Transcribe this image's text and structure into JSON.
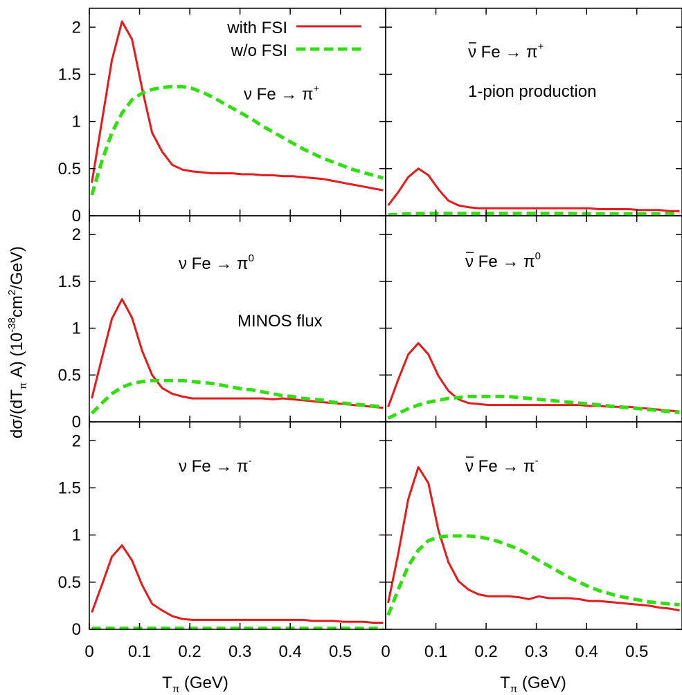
{
  "figure": {
    "ylabel_parts": [
      "dσ/(dT",
      "π",
      " A)  (10",
      "-38",
      "cm",
      "2",
      "/GeV)"
    ],
    "xlabel_parts": [
      "T",
      "π",
      " (GeV)"
    ],
    "legend": [
      {
        "label": "with FSI",
        "color": "#e41a1c",
        "dash": "solid"
      },
      {
        "label": "w/o FSI",
        "color": "#33dd11",
        "dash": "dashed"
      }
    ],
    "annotations": {
      "process_top_right": "1-pion production",
      "flux_middle_left": "MINOS flux"
    }
  },
  "chart_data": [
    {
      "type": "line",
      "panel": "top-left",
      "label_parts": [
        "ν Fe → π",
        "+"
      ],
      "bar": false,
      "xlim": [
        0,
        0.59
      ],
      "ylim": [
        0,
        2.2
      ],
      "yticks": [
        "0",
        "0.5",
        "1",
        "1.5",
        "2"
      ],
      "xticks": [],
      "series": [
        {
          "name": "with FSI",
          "x": [
            0.005,
            0.025,
            0.045,
            0.065,
            0.085,
            0.105,
            0.125,
            0.145,
            0.165,
            0.185,
            0.205,
            0.225,
            0.245,
            0.265,
            0.285,
            0.305,
            0.325,
            0.345,
            0.365,
            0.385,
            0.405,
            0.425,
            0.445,
            0.465,
            0.485,
            0.505,
            0.525,
            0.545,
            0.565,
            0.585
          ],
          "y": [
            0.35,
            1.0,
            1.65,
            2.06,
            1.87,
            1.35,
            0.88,
            0.68,
            0.54,
            0.49,
            0.47,
            0.46,
            0.45,
            0.45,
            0.45,
            0.44,
            0.44,
            0.43,
            0.43,
            0.42,
            0.42,
            0.41,
            0.4,
            0.39,
            0.37,
            0.35,
            0.33,
            0.31,
            0.29,
            0.27
          ]
        },
        {
          "name": "w/o FSI",
          "x": [
            0.005,
            0.025,
            0.045,
            0.065,
            0.085,
            0.105,
            0.125,
            0.145,
            0.165,
            0.185,
            0.205,
            0.225,
            0.245,
            0.265,
            0.285,
            0.305,
            0.325,
            0.345,
            0.365,
            0.385,
            0.405,
            0.425,
            0.445,
            0.465,
            0.485,
            0.505,
            0.525,
            0.545,
            0.565,
            0.585
          ],
          "y": [
            0.22,
            0.58,
            0.88,
            1.09,
            1.23,
            1.3,
            1.34,
            1.36,
            1.37,
            1.37,
            1.35,
            1.31,
            1.26,
            1.2,
            1.14,
            1.08,
            1.02,
            0.95,
            0.89,
            0.83,
            0.77,
            0.71,
            0.66,
            0.61,
            0.57,
            0.53,
            0.49,
            0.46,
            0.43,
            0.4
          ]
        }
      ]
    },
    {
      "type": "line",
      "panel": "top-right",
      "label_parts": [
        "ν Fe → π",
        "+"
      ],
      "bar": true,
      "xlim": [
        0,
        0.59
      ],
      "ylim": [
        0,
        2.2
      ],
      "yticks": [],
      "xticks": [],
      "series": [
        {
          "name": "with FSI",
          "x": [
            0.005,
            0.025,
            0.045,
            0.065,
            0.085,
            0.105,
            0.125,
            0.145,
            0.165,
            0.185,
            0.205,
            0.225,
            0.245,
            0.265,
            0.285,
            0.305,
            0.325,
            0.345,
            0.365,
            0.385,
            0.405,
            0.425,
            0.445,
            0.465,
            0.485,
            0.505,
            0.525,
            0.545,
            0.565,
            0.585
          ],
          "y": [
            0.11,
            0.25,
            0.41,
            0.5,
            0.43,
            0.28,
            0.16,
            0.11,
            0.09,
            0.08,
            0.08,
            0.08,
            0.08,
            0.08,
            0.08,
            0.08,
            0.08,
            0.08,
            0.08,
            0.08,
            0.08,
            0.07,
            0.07,
            0.07,
            0.07,
            0.06,
            0.06,
            0.06,
            0.05,
            0.05
          ]
        },
        {
          "name": "w/o FSI",
          "x": [
            0.005,
            0.025,
            0.045,
            0.065,
            0.085,
            0.105,
            0.125,
            0.145,
            0.165,
            0.185,
            0.205,
            0.225,
            0.245,
            0.265,
            0.285,
            0.305,
            0.325,
            0.345,
            0.365,
            0.385,
            0.405,
            0.425,
            0.445,
            0.465,
            0.485,
            0.505,
            0.525,
            0.545,
            0.565,
            0.585
          ],
          "y": [
            0.01,
            0.015,
            0.02,
            0.025,
            0.025,
            0.025,
            0.025,
            0.025,
            0.025,
            0.025,
            0.025,
            0.025,
            0.025,
            0.025,
            0.025,
            0.025,
            0.025,
            0.025,
            0.025,
            0.02,
            0.02,
            0.02,
            0.02,
            0.02,
            0.02,
            0.02,
            0.02,
            0.02,
            0.02,
            0.02
          ]
        }
      ]
    },
    {
      "type": "line",
      "panel": "middle-left",
      "label_parts": [
        "ν Fe →  π",
        "0"
      ],
      "bar": false,
      "xlim": [
        0,
        0.59
      ],
      "ylim": [
        0,
        2.2
      ],
      "yticks": [
        "0",
        "0.5",
        "1",
        "1.5",
        "2"
      ],
      "xticks": [],
      "series": [
        {
          "name": "with FSI",
          "x": [
            0.005,
            0.025,
            0.045,
            0.065,
            0.085,
            0.105,
            0.125,
            0.145,
            0.165,
            0.185,
            0.205,
            0.225,
            0.245,
            0.265,
            0.285,
            0.305,
            0.325,
            0.345,
            0.365,
            0.385,
            0.405,
            0.425,
            0.445,
            0.465,
            0.485,
            0.505,
            0.525,
            0.545,
            0.565,
            0.585
          ],
          "y": [
            0.25,
            0.68,
            1.1,
            1.31,
            1.11,
            0.76,
            0.5,
            0.36,
            0.3,
            0.27,
            0.25,
            0.25,
            0.25,
            0.25,
            0.25,
            0.25,
            0.25,
            0.25,
            0.24,
            0.25,
            0.24,
            0.23,
            0.22,
            0.21,
            0.2,
            0.19,
            0.18,
            0.17,
            0.16,
            0.15
          ]
        },
        {
          "name": "w/o FSI",
          "x": [
            0.005,
            0.025,
            0.045,
            0.065,
            0.085,
            0.105,
            0.125,
            0.145,
            0.165,
            0.185,
            0.205,
            0.225,
            0.245,
            0.265,
            0.285,
            0.305,
            0.325,
            0.345,
            0.365,
            0.385,
            0.405,
            0.425,
            0.445,
            0.465,
            0.485,
            0.505,
            0.525,
            0.545,
            0.565,
            0.585
          ],
          "y": [
            0.09,
            0.2,
            0.3,
            0.37,
            0.41,
            0.43,
            0.44,
            0.44,
            0.44,
            0.44,
            0.43,
            0.42,
            0.41,
            0.39,
            0.37,
            0.35,
            0.34,
            0.32,
            0.3,
            0.28,
            0.27,
            0.25,
            0.24,
            0.23,
            0.21,
            0.2,
            0.19,
            0.18,
            0.17,
            0.16
          ]
        }
      ]
    },
    {
      "type": "line",
      "panel": "middle-right",
      "label_parts": [
        "ν Fe → π",
        "0"
      ],
      "bar": true,
      "xlim": [
        0,
        0.59
      ],
      "ylim": [
        0,
        2.2
      ],
      "yticks": [],
      "xticks": [],
      "series": [
        {
          "name": "with FSI",
          "x": [
            0.005,
            0.025,
            0.045,
            0.065,
            0.085,
            0.105,
            0.125,
            0.145,
            0.165,
            0.185,
            0.205,
            0.225,
            0.245,
            0.265,
            0.285,
            0.305,
            0.325,
            0.345,
            0.365,
            0.385,
            0.405,
            0.425,
            0.445,
            0.465,
            0.485,
            0.505,
            0.525,
            0.545,
            0.565,
            0.585
          ],
          "y": [
            0.16,
            0.45,
            0.72,
            0.84,
            0.72,
            0.49,
            0.33,
            0.24,
            0.2,
            0.19,
            0.18,
            0.18,
            0.18,
            0.18,
            0.18,
            0.18,
            0.18,
            0.18,
            0.18,
            0.18,
            0.17,
            0.17,
            0.16,
            0.16,
            0.16,
            0.15,
            0.14,
            0.13,
            0.12,
            0.11
          ]
        },
        {
          "name": "w/o FSI",
          "x": [
            0.005,
            0.025,
            0.045,
            0.065,
            0.085,
            0.105,
            0.125,
            0.145,
            0.165,
            0.185,
            0.205,
            0.225,
            0.245,
            0.265,
            0.285,
            0.305,
            0.325,
            0.345,
            0.365,
            0.385,
            0.405,
            0.425,
            0.445,
            0.465,
            0.485,
            0.505,
            0.525,
            0.545,
            0.565,
            0.585
          ],
          "y": [
            0.04,
            0.09,
            0.14,
            0.18,
            0.21,
            0.23,
            0.25,
            0.26,
            0.27,
            0.27,
            0.27,
            0.27,
            0.27,
            0.26,
            0.25,
            0.24,
            0.23,
            0.22,
            0.21,
            0.2,
            0.19,
            0.18,
            0.17,
            0.16,
            0.15,
            0.14,
            0.13,
            0.12,
            0.11,
            0.1
          ]
        }
      ]
    },
    {
      "type": "line",
      "panel": "bottom-left",
      "label_parts": [
        "ν Fe →  π",
        "-"
      ],
      "bar": false,
      "xlim": [
        0,
        0.59
      ],
      "ylim": [
        0,
        2.2
      ],
      "yticks": [
        "0",
        "0.5",
        "1",
        "1.5",
        "2"
      ],
      "xticks": [
        "0",
        "0.1",
        "0.2",
        "0.3",
        "0.4",
        "0.5"
      ],
      "series": [
        {
          "name": "with FSI",
          "x": [
            0.005,
            0.025,
            0.045,
            0.065,
            0.085,
            0.105,
            0.125,
            0.145,
            0.165,
            0.185,
            0.205,
            0.225,
            0.245,
            0.265,
            0.285,
            0.305,
            0.325,
            0.345,
            0.365,
            0.385,
            0.405,
            0.425,
            0.445,
            0.465,
            0.485,
            0.505,
            0.525,
            0.545,
            0.565,
            0.585
          ],
          "y": [
            0.18,
            0.47,
            0.77,
            0.89,
            0.73,
            0.47,
            0.27,
            0.2,
            0.14,
            0.11,
            0.1,
            0.1,
            0.1,
            0.1,
            0.1,
            0.1,
            0.1,
            0.1,
            0.1,
            0.1,
            0.1,
            0.1,
            0.09,
            0.09,
            0.09,
            0.08,
            0.08,
            0.08,
            0.07,
            0.07
          ]
        },
        {
          "name": "w/o FSI",
          "x": [
            0.005,
            0.025,
            0.045,
            0.065,
            0.085,
            0.105,
            0.125,
            0.145,
            0.165,
            0.185,
            0.205,
            0.225,
            0.245,
            0.265,
            0.285,
            0.305,
            0.325,
            0.345,
            0.365,
            0.385,
            0.405,
            0.425,
            0.445,
            0.465,
            0.485,
            0.505,
            0.525,
            0.545,
            0.565,
            0.585
          ],
          "y": [
            0.01,
            0.01,
            0.01,
            0.01,
            0.01,
            0.01,
            0.01,
            0.01,
            0.01,
            0.01,
            0.01,
            0.01,
            0.01,
            0.01,
            0.01,
            0.01,
            0.01,
            0.01,
            0.01,
            0.01,
            0.01,
            0.01,
            0.01,
            0.01,
            0.01,
            0.01,
            0.01,
            0.01,
            0.01,
            0.01
          ]
        }
      ]
    },
    {
      "type": "line",
      "panel": "bottom-right",
      "label_parts": [
        "ν Fe → π",
        "-"
      ],
      "bar": true,
      "xlim": [
        0,
        0.59
      ],
      "ylim": [
        0,
        2.2
      ],
      "yticks": [],
      "xticks": [
        "0",
        "0.1",
        "0.2",
        "0.3",
        "0.4",
        "0.5"
      ],
      "series": [
        {
          "name": "with FSI",
          "x": [
            0.005,
            0.025,
            0.045,
            0.065,
            0.085,
            0.105,
            0.125,
            0.145,
            0.165,
            0.185,
            0.205,
            0.225,
            0.245,
            0.265,
            0.285,
            0.305,
            0.325,
            0.345,
            0.365,
            0.385,
            0.405,
            0.425,
            0.445,
            0.465,
            0.485,
            0.505,
            0.525,
            0.545,
            0.565,
            0.585
          ],
          "y": [
            0.28,
            0.8,
            1.38,
            1.72,
            1.55,
            1.05,
            0.71,
            0.51,
            0.42,
            0.37,
            0.35,
            0.35,
            0.35,
            0.34,
            0.32,
            0.35,
            0.33,
            0.33,
            0.33,
            0.32,
            0.3,
            0.3,
            0.29,
            0.28,
            0.27,
            0.26,
            0.25,
            0.23,
            0.22,
            0.2
          ]
        },
        {
          "name": "w/o FSI",
          "x": [
            0.005,
            0.025,
            0.045,
            0.065,
            0.085,
            0.105,
            0.125,
            0.145,
            0.165,
            0.185,
            0.205,
            0.225,
            0.245,
            0.265,
            0.285,
            0.305,
            0.325,
            0.345,
            0.365,
            0.385,
            0.405,
            0.425,
            0.445,
            0.465,
            0.485,
            0.505,
            0.525,
            0.545,
            0.565,
            0.585
          ],
          "y": [
            0.15,
            0.42,
            0.67,
            0.84,
            0.94,
            0.98,
            0.99,
            0.99,
            0.99,
            0.98,
            0.96,
            0.93,
            0.89,
            0.85,
            0.79,
            0.73,
            0.67,
            0.61,
            0.55,
            0.5,
            0.45,
            0.41,
            0.38,
            0.35,
            0.33,
            0.31,
            0.29,
            0.28,
            0.27,
            0.26
          ]
        }
      ]
    }
  ]
}
